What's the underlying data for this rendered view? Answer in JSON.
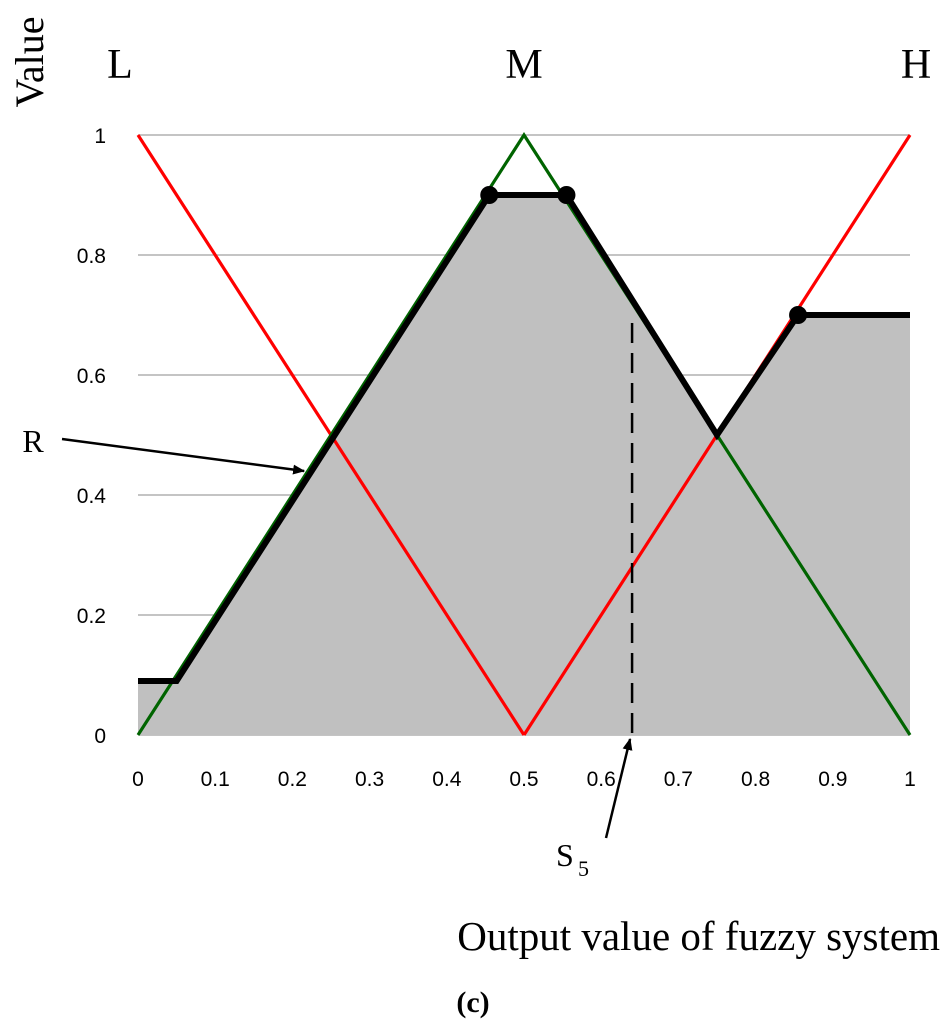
{
  "chart_data": {
    "type": "line",
    "title": "",
    "xlabel": "Output value of fuzzy system",
    "ylabel": "Value",
    "caption": "(c)",
    "xlim": [
      0,
      1
    ],
    "ylim": [
      0,
      1
    ],
    "grid": "horizontal",
    "x_ticks": [
      "0",
      "0.1",
      "0.2",
      "0.3",
      "0.4",
      "0.5",
      "0.6",
      "0.7",
      "0.8",
      "0.9",
      "1"
    ],
    "y_ticks": [
      "0",
      "0.2",
      "0.4",
      "0.6",
      "0.8",
      "1"
    ],
    "membership_labels": [
      {
        "text": "L",
        "x": 0
      },
      {
        "text": "M",
        "x": 0.5
      },
      {
        "text": "H",
        "x": 1
      }
    ],
    "series": [
      {
        "color": "#ff0000",
        "x": [
          0,
          0.5
        ],
        "y": [
          1,
          0
        ]
      },
      {
        "color": "#006400",
        "x": [
          0,
          0.5,
          1
        ],
        "y": [
          0,
          1,
          0
        ]
      },
      {
        "color": "#ff0000",
        "x": [
          0.5,
          1
        ],
        "y": [
          0,
          1
        ]
      },
      {
        "color": "#000000",
        "fill": "#c0c0c0",
        "x": [
          0,
          0.05,
          0.455,
          0.555,
          0.75,
          0.855,
          1
        ],
        "y": [
          0.09,
          0.09,
          0.9,
          0.9,
          0.5,
          0.7,
          0.7
        ]
      }
    ],
    "markers": [
      {
        "x": 0.455,
        "y": 0.9
      },
      {
        "x": 0.555,
        "y": 0.9
      },
      {
        "x": 0.855,
        "y": 0.7
      }
    ],
    "annotations": [
      {
        "text": "R",
        "target_x": 0.21,
        "target_y": 0.43
      },
      {
        "text": "S",
        "subscript": "5",
        "x": 0.64
      }
    ],
    "colors": {
      "grid": "#a0a0a0",
      "area": "#c0c0c0",
      "aggregate": "#000000"
    }
  }
}
